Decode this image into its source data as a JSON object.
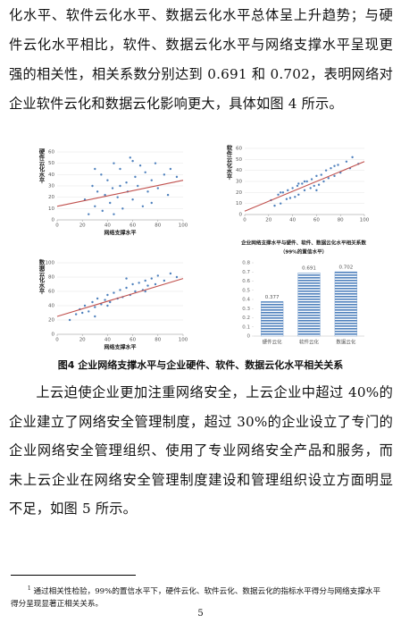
{
  "paragraphs": [
    "化水平、软件云化水平、数据云化水平总体呈上升趋势；与硬件云化水平相比，软件、数据云化水平与网络支撑水平呈现更强的相关性，相关系数分别达到 0.691 和 0.702，表明网络对企业软件云化和数据云化影响更大，具体如图 4 所示。",
    "上云迫使企业更加注重网络安全，上云企业中超过 40%的企业建立了网络安全管理制度，超过 30%的企业设立了专门的企业网络安全管理组织、使用了专业网络安全产品和服务，而未上云企业在网络安全管理制度建设和管理组织设立方面明显不足，如图 5 所示。"
  ],
  "figure": {
    "caption": "图4  企业网络支撑水平与企业硬件、软件、数据云化水平相关关系",
    "charts": [
      {
        "type": "scatter",
        "ylabel": "硬件云化水平",
        "xlabel": "网络支撑水平",
        "xlim": [
          0,
          100
        ],
        "xticks": [
          0,
          20,
          40,
          60,
          80,
          100
        ],
        "ylim": [
          0,
          60
        ],
        "yticks": [
          0,
          10,
          20,
          30,
          40,
          50,
          60
        ],
        "color": "#4f81bd",
        "trend_color": "#c0504d",
        "x": [
          22,
          25,
          28,
          30,
          32,
          35,
          36,
          38,
          40,
          42,
          44,
          45,
          48,
          50,
          52,
          55,
          56,
          58,
          60,
          62,
          64,
          66,
          68,
          70,
          72,
          75,
          78,
          80,
          85,
          88,
          90,
          95,
          30,
          45,
          60,
          75,
          50
        ],
        "y": [
          18,
          5,
          30,
          12,
          25,
          40,
          8,
          22,
          35,
          15,
          28,
          50,
          20,
          45,
          10,
          33,
          25,
          55,
          18,
          38,
          30,
          48,
          12,
          42,
          25,
          35,
          50,
          28,
          40,
          22,
          45,
          38,
          45,
          5,
          52,
          15,
          30
        ],
        "trend": {
          "x": [
            0,
            100
          ],
          "y": [
            12,
            35
          ]
        }
      },
      {
        "type": "scatter",
        "ylabel": "软件云化水平",
        "xlim": [
          0,
          100
        ],
        "xticks": [
          0,
          20,
          40,
          60,
          80,
          100
        ],
        "ylim": [
          0,
          60
        ],
        "yticks": [
          0,
          10,
          20,
          30,
          40,
          50,
          60
        ],
        "color": "#4f81bd",
        "trend_color": "#c0504d",
        "x": [
          22,
          25,
          28,
          30,
          32,
          35,
          36,
          38,
          40,
          42,
          44,
          45,
          48,
          50,
          52,
          55,
          56,
          58,
          60,
          62,
          64,
          66,
          68,
          70,
          72,
          75,
          78,
          80,
          85,
          88,
          90,
          95,
          30,
          45,
          60,
          75,
          50
        ],
        "y": [
          13,
          8,
          18,
          10,
          20,
          14,
          22,
          15,
          24,
          16,
          26,
          18,
          28,
          22,
          30,
          24,
          32,
          26,
          35,
          27,
          36,
          30,
          40,
          33,
          42,
          35,
          45,
          38,
          48,
          42,
          52,
          46,
          20,
          28,
          22,
          44,
          30
        ],
        "trend": {
          "x": [
            0,
            100
          ],
          "y": [
            3,
            48
          ]
        }
      },
      {
        "type": "scatter",
        "ylabel": "数据云化水平",
        "xlabel": "网络支撑水平",
        "xlim": [
          0,
          100
        ],
        "xticks": [
          0,
          20,
          40,
          60,
          80,
          100
        ],
        "ylim": [
          0,
          100
        ],
        "yticks": [
          0,
          20,
          40,
          60,
          80,
          100
        ],
        "color": "#4f81bd",
        "trend_color": "#c0504d",
        "x": [
          10,
          15,
          18,
          20,
          22,
          25,
          28,
          30,
          32,
          35,
          38,
          40,
          42,
          45,
          48,
          50,
          52,
          55,
          58,
          60,
          62,
          65,
          68,
          70,
          72,
          75,
          78,
          80,
          85,
          90,
          95,
          40,
          55,
          70,
          30
        ],
        "y": [
          20,
          28,
          35,
          30,
          40,
          32,
          45,
          38,
          50,
          42,
          48,
          55,
          45,
          58,
          50,
          62,
          52,
          65,
          55,
          70,
          60,
          72,
          62,
          75,
          68,
          78,
          70,
          82,
          75,
          85,
          80,
          40,
          78,
          60,
          25
        ],
        "trend": {
          "x": [
            0,
            100
          ],
          "y": [
            25,
            78
          ]
        }
      },
      {
        "type": "bar",
        "title": "企业网络支撑水平与硬件、软件、数据云化水平相关系数",
        "subtitle": "（99%的置信水平）",
        "categories": [
          "硬件云化",
          "软件云化",
          "数据云化"
        ],
        "values": [
          0.377,
          0.691,
          0.702
        ],
        "color": "#4f81bd",
        "ylim": [
          0,
          0.8
        ],
        "yticks": [
          0,
          0.1,
          0.2,
          0.3,
          0.4,
          0.5,
          0.6,
          0.7,
          0.8
        ]
      }
    ]
  },
  "footnote": {
    "mark": "1",
    "text": "通过相关性检验，99%的置信水平下，硬件云化、软件云化、数据云化的指标水平得分与网络支撑水平得分呈现显著正相关关系。"
  },
  "page_number": "5"
}
